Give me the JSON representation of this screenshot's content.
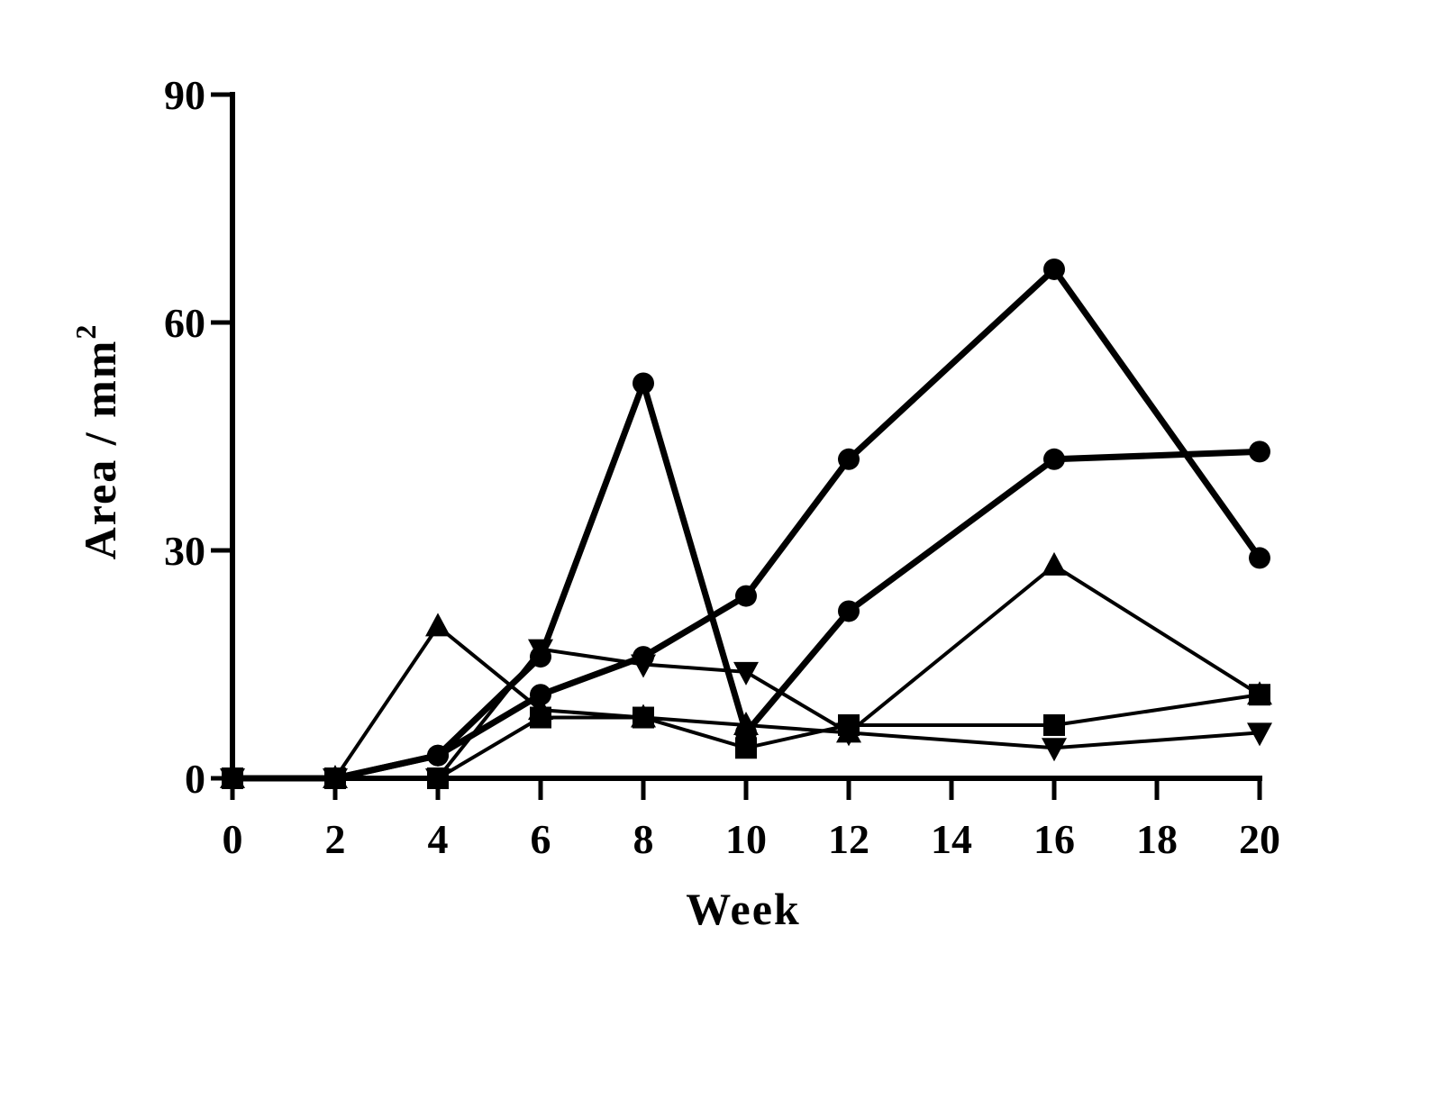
{
  "chart_data": {
    "type": "line",
    "title": "",
    "xlabel": "Week",
    "ylabel": "Area / mm",
    "ylabel_superscript": "2",
    "xlim": [
      0,
      20
    ],
    "ylim": [
      0,
      90
    ],
    "xticks": [
      0,
      2,
      4,
      6,
      8,
      10,
      12,
      14,
      16,
      18,
      20
    ],
    "yticks": [
      0,
      30,
      60,
      90
    ],
    "grid": false,
    "legend": "none",
    "series": [
      {
        "name": "circle-series-1",
        "marker": "circle",
        "weight": "heavy",
        "x": [
          0,
          2,
          4,
          6,
          8,
          10,
          12,
          16,
          20
        ],
        "y": [
          0,
          0,
          3,
          16,
          52,
          6,
          22,
          42,
          43
        ]
      },
      {
        "name": "circle-series-2",
        "marker": "circle",
        "weight": "heavy",
        "x": [
          0,
          2,
          4,
          6,
          8,
          10,
          12,
          16,
          20
        ],
        "y": [
          0,
          0,
          3,
          11,
          16,
          24,
          42,
          67,
          29
        ]
      },
      {
        "name": "triangle-up-series",
        "marker": "triangle-up",
        "weight": "light",
        "x": [
          0,
          2,
          4,
          6,
          8,
          10,
          12,
          16,
          20
        ],
        "y": [
          0,
          0,
          20,
          9,
          8,
          7,
          6,
          28,
          11
        ]
      },
      {
        "name": "triangle-down-series",
        "marker": "triangle-down",
        "weight": "light",
        "x": [
          0,
          2,
          4,
          6,
          8,
          10,
          12,
          16,
          20
        ],
        "y": [
          0,
          0,
          0,
          17,
          15,
          14,
          6,
          4,
          6
        ]
      },
      {
        "name": "square-series",
        "marker": "square",
        "weight": "light",
        "x": [
          0,
          2,
          4,
          6,
          8,
          10,
          12,
          16,
          20
        ],
        "y": [
          0,
          0,
          0,
          8,
          8,
          4,
          7,
          7,
          11
        ]
      }
    ]
  }
}
